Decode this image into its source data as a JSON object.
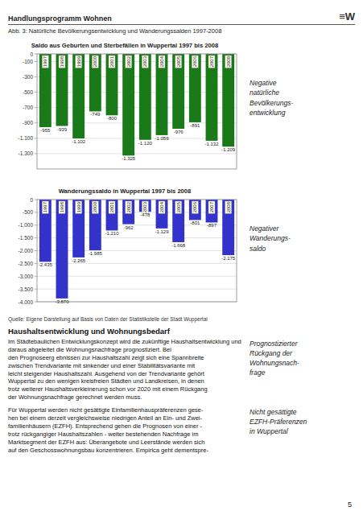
{
  "title_header": "Handlungsprogramm Wohnen",
  "logo": "≡W",
  "caption": "Abb. 3: Natürliche Bevölkerungsentwicklung und Wanderungssalden 1997-2008",
  "chart_data": [
    {
      "type": "bar",
      "title": "Saldo aus Geburten und Sterbefällen in Wuppertal 1997 bis 2008",
      "categories": [
        "1997",
        "1998",
        "1999",
        "2000",
        "2001",
        "2002",
        "2003",
        "2004",
        "2005",
        "2006",
        "2007",
        "2008"
      ],
      "values": [
        -955,
        -939,
        -1102,
        -749,
        -800,
        -1325,
        -1120,
        -1059,
        -976,
        -891,
        -1132,
        -1209
      ],
      "value_labels": [
        "-955",
        "-939",
        "-1.102",
        "-749",
        "-800",
        "-1.325",
        "-1.120",
        "-1.059",
        "-976",
        "-891",
        "-1.132",
        "-1.209"
      ],
      "color": "#1a7a1a",
      "ylim": [
        -1500,
        0
      ],
      "yticks": [
        0,
        -100,
        -300,
        -500,
        -700,
        -900,
        {
          "value": -1100,
          "label": "-1.100"
        },
        {
          "value": -1300,
          "label": "-1.300"
        }
      ],
      "grid": true,
      "data_labels": true
    },
    {
      "type": "bar",
      "title": "Wanderungssaldo in Wuppertal 1997 bis 2008",
      "categories": [
        "1997",
        "1998",
        "1999",
        "2000",
        "2001",
        "2002",
        "2003",
        "2004",
        "2005",
        "2006",
        "2007",
        "2008"
      ],
      "values": [
        -2435,
        -3870,
        -2265,
        -1985,
        -1210,
        -962,
        -478,
        -1129,
        -1668,
        -801,
        -897,
        -2175
      ],
      "value_labels": [
        "-2.435",
        "-3.870",
        "-2.265",
        "-1.985",
        "-1.210",
        "-962",
        "-478",
        "-1.129",
        "-1.668",
        "-801",
        "-897",
        "-2.175"
      ],
      "color": "#3333cc",
      "ylim": [
        -4000,
        0
      ],
      "yticks": [
        0,
        -500,
        {
          "value": -1000,
          "label": "-1.000"
        },
        {
          "value": -1500,
          "label": "-1.500"
        },
        {
          "value": -2000,
          "label": "-2.000"
        },
        {
          "value": -2500,
          "label": "-2.500"
        },
        {
          "value": -3000,
          "label": "-3.000"
        },
        {
          "value": -3500,
          "label": "-3.500"
        },
        {
          "value": -4000,
          "label": "-4.000"
        }
      ],
      "grid": true,
      "data_labels": true
    }
  ],
  "right_text1": [
    "Negative",
    "natürliche",
    "Bevölkerungs-",
    "entwicklung"
  ],
  "right_text2": [
    "Negativer",
    "Wanderungs-",
    "saldo"
  ],
  "source_note": "Quelle: Eigene Darstellung auf Basis von Daten der Statistikstelle der Stadt Wuppertal",
  "heading": "Haushaltsentwicklung und Wohnungsbedarf",
  "body_para1_lines": [
    "Im Städtebaulichen Entwicklungskonzept wird die zukünftige Haushaltsentwicklung und daraus abgeleitet die Wohnungsnachfrage prognostiziert. Bei",
    "den Prognoseerg ebnissen zur Haushaltszahl zeigt sich eine Spannbreite",
    "zwischen Trendvariante mit sinkender und einer Stabilitätsvariante mit",
    "leicht steigender Haushaltszahl. Ausgehend von der Trendvariante gehört",
    "Wuppertal zu den wenigen kreisfreien Städten und Landkreisen, in denen",
    "trotz weiterer Haushaltsverkleinerung schon vor 2020 mit einem Rückgang",
    "der Wohnungsnachfrage gerechnet werden muss."
  ],
  "right_para1": [
    "Prognostizierter",
    "Rückgang der",
    "Wohnungsnach-",
    "frage"
  ],
  "body_para2_lines": [
    "Für Wuppertal werden nicht gesättigte Einfamilienhauspräferenzen gese-",
    "hen bei einem derzeit vergleichsweise niedrigen Anteil an Ein- und Zwei-",
    "familienhäusern (EZFH). Entsprechend gehen die Prognosen von einer -",
    "trotz rückgangiger Haushaltszahlen - weiter bestehenden Nachfrage im",
    "Marktsegment der EZFH aus: Überangebote und Leerstände werden sich",
    "auf den Geschosswohnungsbau konzentrieren. Empirica geht dementspre-"
  ],
  "right_para2": [
    "Nicht gesättigte",
    "EZFH-Präferenzen",
    "in Wuppertal"
  ],
  "page_number": "5"
}
